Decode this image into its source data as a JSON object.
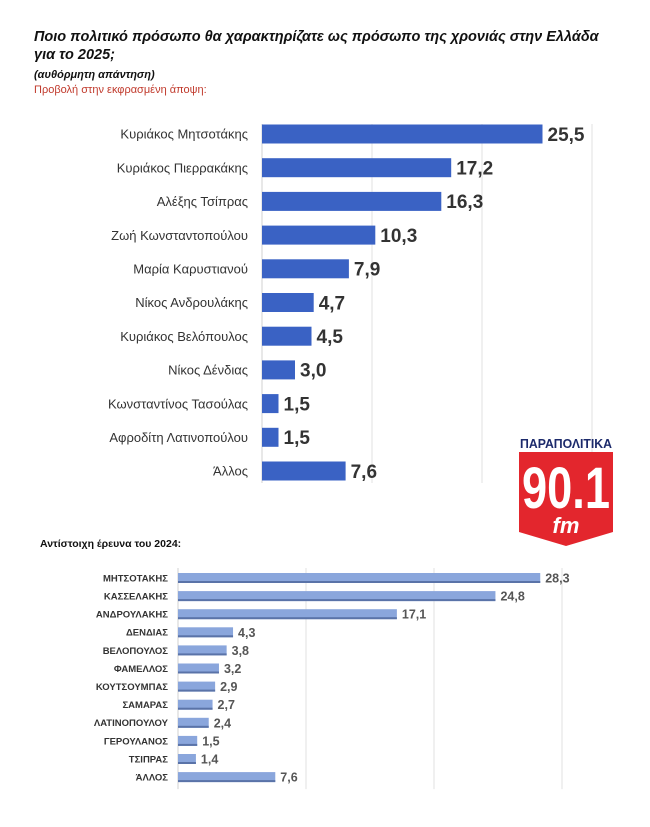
{
  "chart_data": [
    {
      "type": "bar",
      "orientation": "horizontal",
      "title": "Ποιο πολιτικό πρόσωπο θα χαρακτηρίζατε ως πρόσωπο της χρονιάς στην Ελλάδα για το 2025;",
      "subtitle": "(αυθόρμητη απάντηση)",
      "note": "Προβολή στην εκφρασμένη άποψη:",
      "categories": [
        "Κυριάκος Μητσοτάκης",
        "Κυριάκος Πιερρακάκης",
        "Αλέξης Τσίπρας",
        "Ζωή Κωνσταντοπούλου",
        "Μαρία Καρυστιανού",
        "Νίκος Ανδρουλάκης",
        "Κυριάκος Βελόπουλος",
        "Νίκος Δένδιας",
        "Κωνσταντίνος Τασούλας",
        "Αφροδίτη Λατινοπούλου",
        "Άλλος"
      ],
      "values": [
        25.5,
        17.2,
        16.3,
        10.3,
        7.9,
        4.7,
        4.5,
        3.0,
        1.5,
        1.5,
        7.6
      ],
      "labels": [
        "25,5",
        "17,2",
        "16,3",
        "10,3",
        "7,9",
        "4,7",
        "4,5",
        "3,0",
        "1,5",
        "1,5",
        "7,6"
      ],
      "xlim": [
        0,
        30
      ],
      "grid": true,
      "color": "#3a62c4"
    },
    {
      "type": "bar",
      "orientation": "horizontal",
      "title": "Αντίστοιχη έρευνα του 2024:",
      "categories": [
        "ΜΗΤΣΟΤΑΚΗΣ",
        "ΚΑΣΣΕΛΑΚΗΣ",
        "ΑΝΔΡΟΥΛΑΚΗΣ",
        "ΔΕΝΔΙΑΣ",
        "ΒΕΛΟΠΟΥΛΟΣ",
        "ΦΑΜΕΛΛΟΣ",
        "ΚΟΥΤΣΟΥΜΠΑΣ",
        "ΣΑΜΑΡΑΣ",
        "ΛΑΤΙΝΟΠΟΥΛΟΥ",
        "ΓΕΡΟΥΛΑΝΟΣ",
        "ΤΣΙΠΡΑΣ",
        "ΆΛΛΟΣ"
      ],
      "values": [
        28.3,
        24.8,
        17.1,
        4.3,
        3.8,
        3.2,
        2.9,
        2.7,
        2.4,
        1.5,
        1.4,
        7.6
      ],
      "labels": [
        "28,3",
        "24,8",
        "17,1",
        "4,3",
        "3,8",
        "3,2",
        "2,9",
        "2,7",
        "2,4",
        "1,5",
        "1,4",
        "7,6"
      ],
      "xlim": [
        0,
        30
      ],
      "grid": true,
      "color": "#8aa6dc"
    }
  ],
  "logo": {
    "brand": "ΠΑΡΑΠΟΛΙΤΙΚΑ",
    "number": "90.1",
    "suffix": "fm",
    "color": "#e3262d"
  }
}
